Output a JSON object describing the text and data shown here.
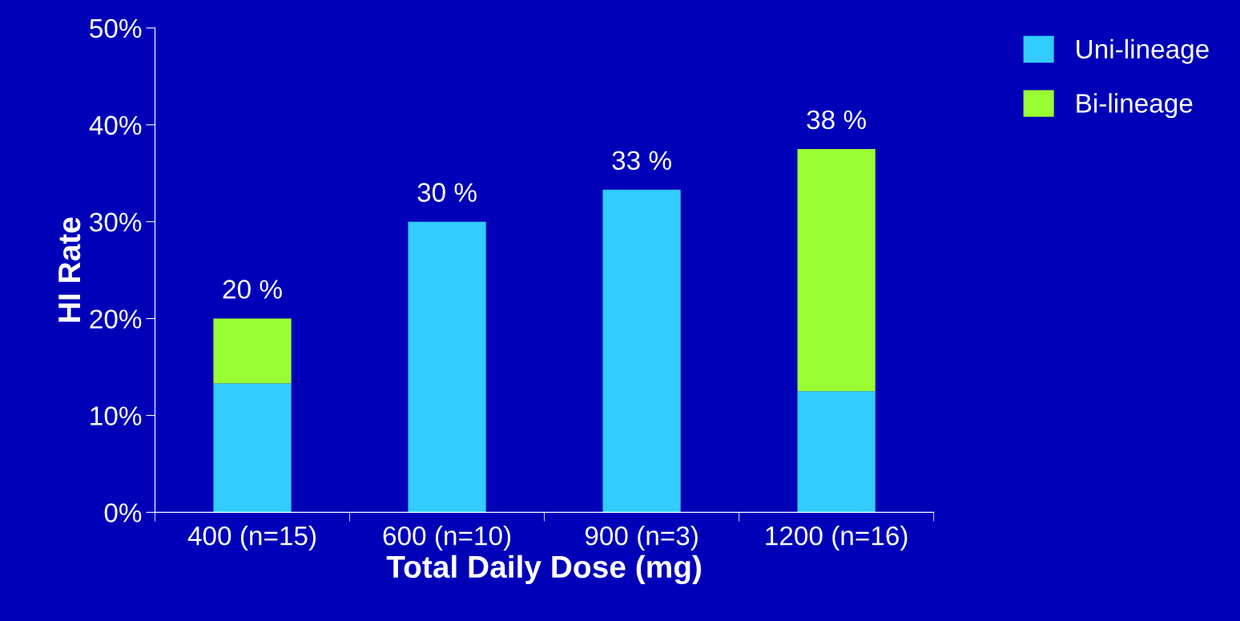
{
  "chart_data": {
    "type": "bar",
    "stacked": true,
    "xlabel": "Total Daily Dose (mg)",
    "ylabel": "HI Rate",
    "categories": [
      "400 (n=15)",
      "600 (n=10)",
      "900 (n=3)",
      "1200 (n=16)"
    ],
    "series": [
      {
        "name": "Uni-lineage",
        "color": "#33ccff",
        "values": [
          13.3,
          30,
          33.3,
          12.5
        ]
      },
      {
        "name": "Bi-lineage",
        "color": "#99ff33",
        "values": [
          6.7,
          0,
          0,
          25
        ]
      }
    ],
    "totals": [
      "20 %",
      "30 %",
      "33 %",
      "38 %"
    ],
    "ylim": [
      0,
      50
    ],
    "yticks": [
      {
        "value": 0,
        "label": "0%"
      },
      {
        "value": 10,
        "label": "10%"
      },
      {
        "value": 20,
        "label": "20%"
      },
      {
        "value": 30,
        "label": "30%"
      },
      {
        "value": 40,
        "label": "40%"
      },
      {
        "value": 50,
        "label": "50%"
      }
    ],
    "grid": false,
    "legend": "top right"
  }
}
